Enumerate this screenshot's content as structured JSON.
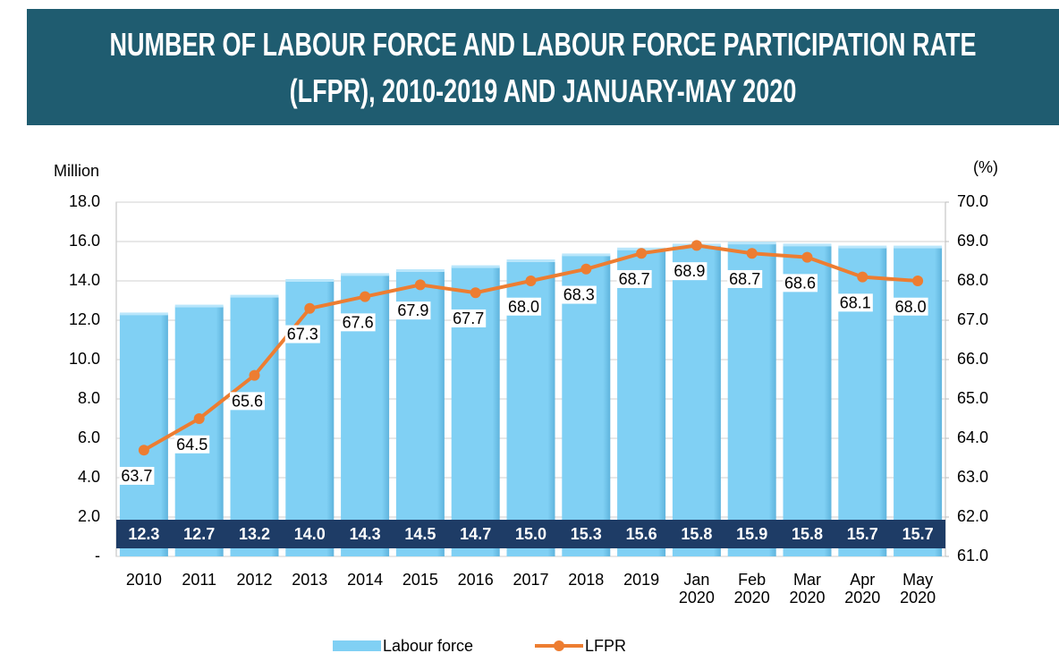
{
  "chart_data": {
    "type": "bar-line",
    "title": "NUMBER OF LABOUR FORCE AND LABOUR FORCE PARTICIPATION RATE (LFPR), 2010-2019 AND JANUARY-MAY 2020",
    "y_label": "Million",
    "y2_label": "(%)",
    "categories": [
      "2010",
      "2011",
      "2012",
      "2013",
      "2014",
      "2015",
      "2016",
      "2017",
      "2018",
      "2019",
      "Jan 2020",
      "Feb 2020",
      "Mar 2020",
      "Apr 2020",
      "May 2020"
    ],
    "series": [
      {
        "name": "Labour force",
        "type": "bar",
        "color": "#80d0f4",
        "values": [
          12.3,
          12.7,
          13.2,
          14.0,
          14.3,
          14.5,
          14.7,
          15.0,
          15.3,
          15.6,
          15.8,
          15.9,
          15.8,
          15.7,
          15.7
        ],
        "value_labels": [
          "12.3",
          "12.7",
          "13.2",
          "14.0",
          "14.3",
          "14.5",
          "14.7",
          "15.0",
          "15.3",
          "15.6",
          "15.8",
          "15.9",
          "15.8",
          "15.7",
          "15.7"
        ]
      },
      {
        "name": "LFPR",
        "type": "line",
        "axis": "y2",
        "color": "#ed7d31",
        "values": [
          63.7,
          64.5,
          65.6,
          67.3,
          67.6,
          67.9,
          67.7,
          68.0,
          68.3,
          68.7,
          68.9,
          68.7,
          68.6,
          68.1,
          68.0
        ],
        "value_labels": [
          "63.7",
          "64.5",
          "65.6",
          "67.3",
          "67.6",
          "67.9",
          "67.7",
          "68.0",
          "68.3",
          "68.7",
          "68.9",
          "68.7",
          "68.6",
          "68.1",
          "68.0"
        ]
      }
    ],
    "ylim": [
      0,
      18
    ],
    "yticks": [
      {
        "value": 0,
        "label": "-"
      },
      {
        "value": 2,
        "label": "2.0"
      },
      {
        "value": 4,
        "label": "4.0"
      },
      {
        "value": 6,
        "label": "6.0"
      },
      {
        "value": 8,
        "label": "8.0"
      },
      {
        "value": 10,
        "label": "10.0"
      },
      {
        "value": 12,
        "label": "12.0"
      },
      {
        "value": 14,
        "label": "14.0"
      },
      {
        "value": 16,
        "label": "16.0"
      },
      {
        "value": 18,
        "label": "18.0"
      }
    ],
    "y2lim": [
      61,
      70
    ],
    "y2ticks": [
      {
        "value": 61,
        "label": "61.0"
      },
      {
        "value": 62,
        "label": "62.0"
      },
      {
        "value": 63,
        "label": "63.0"
      },
      {
        "value": 64,
        "label": "64.0"
      },
      {
        "value": 65,
        "label": "65.0"
      },
      {
        "value": 66,
        "label": "66.0"
      },
      {
        "value": 67,
        "label": "67.0"
      },
      {
        "value": 68,
        "label": "68.0"
      },
      {
        "value": 69,
        "label": "69.0"
      },
      {
        "value": 70,
        "label": "70.0"
      }
    ],
    "grid": true
  }
}
